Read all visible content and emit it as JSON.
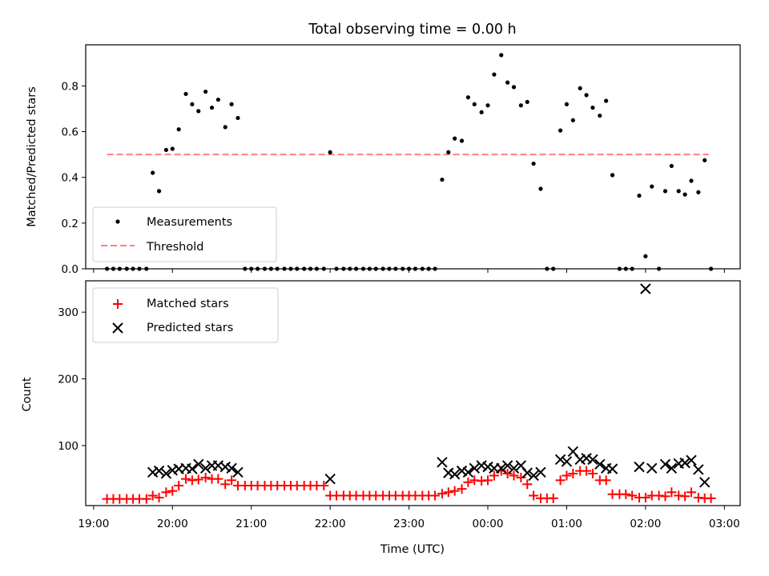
{
  "chart_data": {
    "title": "Total observing time = 0.00 h",
    "xlabel": "Time (UTC)",
    "x_tick_labels": [
      "19:00",
      "20:00",
      "21:00",
      "22:00",
      "23:00",
      "00:00",
      "01:00",
      "02:00",
      "03:00"
    ],
    "x_tick_hours": [
      19,
      20,
      21,
      22,
      23,
      24,
      25,
      26,
      27
    ],
    "xlim_hours": [
      18.9,
      27.2
    ],
    "x_unit": "hours UTC since 00:00 of the start date (values above 24 are after midnight)",
    "panels": [
      {
        "type": "scatter",
        "ylabel": "Matched/Predicted stars",
        "ylim": [
          0,
          0.98
        ],
        "y_ticks": [
          0.0,
          0.2,
          0.4,
          0.6,
          0.8
        ],
        "y_tick_labels": [
          "0.0",
          "0.2",
          "0.4",
          "0.6",
          "0.8"
        ],
        "legend": {
          "placement": "lower-left",
          "entries": [
            "Measurements",
            "Threshold"
          ]
        },
        "threshold": {
          "name": "Threshold",
          "value": 0.5,
          "x_range": [
            19.17,
            26.8
          ],
          "color": "#ff7f7f"
        },
        "series": [
          {
            "name": "Measurements",
            "color": "#000000",
            "marker": "dot",
            "points": [
              [
                19.17,
                0
              ],
              [
                19.25,
                0
              ],
              [
                19.33,
                0
              ],
              [
                19.42,
                0
              ],
              [
                19.5,
                0
              ],
              [
                19.58,
                0
              ],
              [
                19.67,
                0
              ],
              [
                19.75,
                0.42
              ],
              [
                19.83,
                0.34
              ],
              [
                19.92,
                0.52
              ],
              [
                20.0,
                0.525
              ],
              [
                20.08,
                0.61
              ],
              [
                20.17,
                0.765
              ],
              [
                20.25,
                0.72
              ],
              [
                20.33,
                0.69
              ],
              [
                20.42,
                0.775
              ],
              [
                20.5,
                0.705
              ],
              [
                20.58,
                0.74
              ],
              [
                20.67,
                0.62
              ],
              [
                20.75,
                0.72
              ],
              [
                20.83,
                0.66
              ],
              [
                20.92,
                0
              ],
              [
                21.0,
                0
              ],
              [
                21.08,
                0
              ],
              [
                21.17,
                0
              ],
              [
                21.25,
                0
              ],
              [
                21.33,
                0
              ],
              [
                21.42,
                0
              ],
              [
                21.5,
                0
              ],
              [
                21.58,
                0
              ],
              [
                21.67,
                0
              ],
              [
                21.75,
                0
              ],
              [
                21.83,
                0
              ],
              [
                21.92,
                0
              ],
              [
                22.0,
                0.51
              ],
              [
                22.08,
                0
              ],
              [
                22.17,
                0
              ],
              [
                22.25,
                0
              ],
              [
                22.33,
                0
              ],
              [
                22.42,
                0
              ],
              [
                22.5,
                0
              ],
              [
                22.58,
                0
              ],
              [
                22.67,
                0
              ],
              [
                22.75,
                0
              ],
              [
                22.83,
                0
              ],
              [
                22.92,
                0
              ],
              [
                23.0,
                0
              ],
              [
                23.08,
                0
              ],
              [
                23.17,
                0
              ],
              [
                23.25,
                0
              ],
              [
                23.33,
                0
              ],
              [
                23.42,
                0.39
              ],
              [
                23.5,
                0.51
              ],
              [
                23.58,
                0.57
              ],
              [
                23.67,
                0.56
              ],
              [
                23.75,
                0.75
              ],
              [
                23.83,
                0.72
              ],
              [
                23.92,
                0.685
              ],
              [
                24.0,
                0.715
              ],
              [
                24.08,
                0.85
              ],
              [
                24.17,
                0.935
              ],
              [
                24.25,
                0.815
              ],
              [
                24.33,
                0.795
              ],
              [
                24.42,
                0.715
              ],
              [
                24.5,
                0.73
              ],
              [
                24.58,
                0.46
              ],
              [
                24.67,
                0.35
              ],
              [
                24.75,
                0
              ],
              [
                24.83,
                0
              ],
              [
                24.92,
                0.605
              ],
              [
                25.0,
                0.72
              ],
              [
                25.08,
                0.65
              ],
              [
                25.17,
                0.79
              ],
              [
                25.25,
                0.76
              ],
              [
                25.33,
                0.705
              ],
              [
                25.42,
                0.67
              ],
              [
                25.5,
                0.735
              ],
              [
                25.58,
                0.41
              ],
              [
                25.67,
                0
              ],
              [
                25.75,
                0
              ],
              [
                25.83,
                0
              ],
              [
                25.92,
                0.32
              ],
              [
                26.0,
                0.055
              ],
              [
                26.08,
                0.36
              ],
              [
                26.17,
                0
              ],
              [
                26.25,
                0.34
              ],
              [
                26.33,
                0.45
              ],
              [
                26.42,
                0.34
              ],
              [
                26.5,
                0.325
              ],
              [
                26.58,
                0.385
              ],
              [
                26.67,
                0.335
              ],
              [
                26.75,
                0.475
              ],
              [
                26.83,
                0
              ]
            ]
          }
        ]
      },
      {
        "type": "scatter",
        "ylabel": "Count",
        "ylim": [
          10,
          347
        ],
        "y_ticks": [
          100,
          200,
          300
        ],
        "y_tick_labels": [
          "100",
          "200",
          "300"
        ],
        "legend": {
          "placement": "top-left",
          "entries": [
            "Matched stars",
            "Predicted stars"
          ]
        },
        "series": [
          {
            "name": "Matched stars",
            "color": "#ff0000",
            "marker": "plus",
            "points": [
              [
                19.17,
                20
              ],
              [
                19.25,
                20
              ],
              [
                19.33,
                20
              ],
              [
                19.42,
                20
              ],
              [
                19.5,
                20
              ],
              [
                19.58,
                20
              ],
              [
                19.67,
                20
              ],
              [
                19.75,
                25
              ],
              [
                19.83,
                22
              ],
              [
                19.92,
                30
              ],
              [
                20.0,
                32
              ],
              [
                20.08,
                40
              ],
              [
                20.17,
                50
              ],
              [
                20.25,
                48
              ],
              [
                20.33,
                49
              ],
              [
                20.42,
                52
              ],
              [
                20.5,
                50
              ],
              [
                20.58,
                50
              ],
              [
                20.67,
                42
              ],
              [
                20.75,
                48
              ],
              [
                20.83,
                40
              ],
              [
                20.92,
                40
              ],
              [
                21.0,
                40
              ],
              [
                21.08,
                40
              ],
              [
                21.17,
                40
              ],
              [
                21.25,
                40
              ],
              [
                21.33,
                40
              ],
              [
                21.42,
                40
              ],
              [
                21.5,
                40
              ],
              [
                21.58,
                40
              ],
              [
                21.67,
                40
              ],
              [
                21.75,
                40
              ],
              [
                21.83,
                40
              ],
              [
                21.92,
                40
              ],
              [
                22.0,
                25
              ],
              [
                22.08,
                25
              ],
              [
                22.17,
                25
              ],
              [
                22.25,
                25
              ],
              [
                22.33,
                25
              ],
              [
                22.42,
                25
              ],
              [
                22.5,
                25
              ],
              [
                22.58,
                25
              ],
              [
                22.67,
                25
              ],
              [
                22.75,
                25
              ],
              [
                22.83,
                25
              ],
              [
                22.92,
                25
              ],
              [
                23.0,
                25
              ],
              [
                23.08,
                25
              ],
              [
                23.17,
                25
              ],
              [
                23.25,
                25
              ],
              [
                23.33,
                25
              ],
              [
                23.42,
                28
              ],
              [
                23.5,
                30
              ],
              [
                23.58,
                32
              ],
              [
                23.67,
                35
              ],
              [
                23.75,
                45
              ],
              [
                23.83,
                48
              ],
              [
                23.92,
                47
              ],
              [
                24.0,
                48
              ],
              [
                24.08,
                55
              ],
              [
                24.17,
                62
              ],
              [
                24.25,
                58
              ],
              [
                24.33,
                55
              ],
              [
                24.42,
                52
              ],
              [
                24.5,
                42
              ],
              [
                24.58,
                25
              ],
              [
                24.67,
                21
              ],
              [
                24.75,
                21
              ],
              [
                24.83,
                21
              ],
              [
                24.92,
                48
              ],
              [
                25.0,
                55
              ],
              [
                25.08,
                58
              ],
              [
                25.17,
                62
              ],
              [
                25.25,
                62
              ],
              [
                25.33,
                58
              ],
              [
                25.42,
                48
              ],
              [
                25.5,
                48
              ],
              [
                25.58,
                27
              ],
              [
                25.67,
                27
              ],
              [
                25.75,
                27
              ],
              [
                25.83,
                25
              ],
              [
                25.92,
                22
              ],
              [
                26.0,
                22
              ],
              [
                26.08,
                25
              ],
              [
                26.17,
                25
              ],
              [
                26.25,
                24
              ],
              [
                26.33,
                30
              ],
              [
                26.42,
                25
              ],
              [
                26.5,
                24
              ],
              [
                26.58,
                30
              ],
              [
                26.67,
                22
              ],
              [
                26.75,
                21
              ],
              [
                26.83,
                21
              ]
            ]
          },
          {
            "name": "Predicted stars",
            "color": "#000000",
            "marker": "x",
            "points": [
              [
                19.75,
                60
              ],
              [
                19.83,
                62
              ],
              [
                19.92,
                58
              ],
              [
                20.0,
                63
              ],
              [
                20.08,
                65
              ],
              [
                20.17,
                66
              ],
              [
                20.25,
                65
              ],
              [
                20.33,
                72
              ],
              [
                20.42,
                66
              ],
              [
                20.5,
                70
              ],
              [
                20.58,
                70
              ],
              [
                20.67,
                68
              ],
              [
                20.75,
                66
              ],
              [
                20.83,
                60
              ],
              [
                22.0,
                50
              ],
              [
                23.42,
                75
              ],
              [
                23.5,
                59
              ],
              [
                23.58,
                57
              ],
              [
                23.67,
                62
              ],
              [
                23.75,
                60
              ],
              [
                23.83,
                66
              ],
              [
                23.92,
                70
              ],
              [
                24.0,
                68
              ],
              [
                24.08,
                66
              ],
              [
                24.17,
                66
              ],
              [
                24.25,
                70
              ],
              [
                24.33,
                66
              ],
              [
                24.42,
                70
              ],
              [
                24.5,
                59
              ],
              [
                24.58,
                55
              ],
              [
                24.67,
                60
              ],
              [
                24.92,
                79
              ],
              [
                25.0,
                76
              ],
              [
                25.08,
                91
              ],
              [
                25.17,
                79
              ],
              [
                25.25,
                81
              ],
              [
                25.33,
                79
              ],
              [
                25.42,
                72
              ],
              [
                25.5,
                66
              ],
              [
                25.58,
                65
              ],
              [
                25.92,
                68
              ],
              [
                26.0,
                335
              ],
              [
                26.08,
                66
              ],
              [
                26.25,
                72
              ],
              [
                26.33,
                66
              ],
              [
                26.42,
                73
              ],
              [
                26.5,
                74
              ],
              [
                26.58,
                78
              ],
              [
                26.67,
                64
              ],
              [
                26.75,
                45
              ]
            ]
          }
        ]
      }
    ]
  }
}
